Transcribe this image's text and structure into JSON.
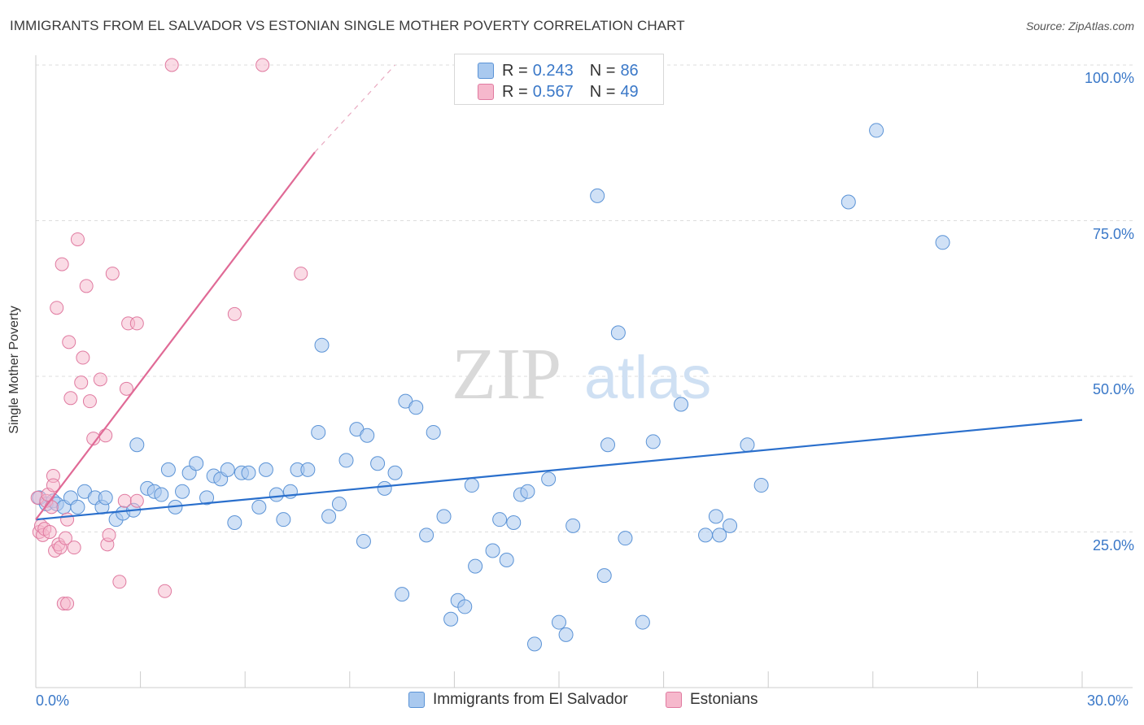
{
  "title": "IMMIGRANTS FROM EL SALVADOR VS ESTONIAN SINGLE MOTHER POVERTY CORRELATION CHART",
  "source": "Source: ZipAtlas.com",
  "watermark": {
    "zip": "ZIP",
    "atlas": "atlas"
  },
  "legend_top": [
    {
      "r_label": "R =",
      "r_value": "0.243",
      "n_label": "N =",
      "n_value": "86"
    },
    {
      "r_label": "R =",
      "r_value": "0.567",
      "n_label": "N =",
      "n_value": "49"
    }
  ],
  "legend_bottom": [
    {
      "label": "Immigrants from El Salvador"
    },
    {
      "label": "Estonians"
    }
  ],
  "colors": {
    "blue_fill": "#a9c9ef",
    "blue_stroke": "#5b93d6",
    "blue_line": "#2a6fcc",
    "pink_fill": "#f6b8cc",
    "pink_stroke": "#e07aa0",
    "pink_line": "#e06a96",
    "tick_text": "#3a78c8",
    "grid": "#dddddd"
  },
  "chart_data": {
    "type": "scatter",
    "xlabel": "",
    "ylabel": "Single Mother Poverty",
    "xlim": [
      0,
      30
    ],
    "ylim": [
      0,
      100
    ],
    "x_ticks_labels": [
      "0.0%",
      "30.0%"
    ],
    "y_ticks": [
      25,
      50,
      75,
      100
    ],
    "y_ticks_labels": [
      "25.0%",
      "50.0%",
      "75.0%",
      "100.0%"
    ],
    "grid": true,
    "legend_placement": "top-center",
    "series": [
      {
        "name": "Immigrants from El Salvador",
        "points": [
          [
            0.1,
            30.5
          ],
          [
            0.3,
            29.5
          ],
          [
            0.5,
            30
          ],
          [
            0.6,
            29.5
          ],
          [
            0.8,
            29
          ],
          [
            1,
            30.5
          ],
          [
            1.2,
            29
          ],
          [
            1.4,
            31.5
          ],
          [
            1.7,
            30.5
          ],
          [
            1.9,
            29
          ],
          [
            2,
            30.5
          ],
          [
            2.3,
            27
          ],
          [
            2.5,
            28
          ],
          [
            2.8,
            28.5
          ],
          [
            2.9,
            39
          ],
          [
            3.2,
            32
          ],
          [
            3.4,
            31.5
          ],
          [
            3.6,
            31
          ],
          [
            3.8,
            35
          ],
          [
            4,
            29
          ],
          [
            4.2,
            31.5
          ],
          [
            4.4,
            34.5
          ],
          [
            4.6,
            36
          ],
          [
            4.9,
            30.5
          ],
          [
            5.1,
            34
          ],
          [
            5.3,
            33.5
          ],
          [
            5.5,
            35
          ],
          [
            5.7,
            26.5
          ],
          [
            5.9,
            34.5
          ],
          [
            6.1,
            34.5
          ],
          [
            6.4,
            29
          ],
          [
            6.6,
            35
          ],
          [
            6.9,
            31
          ],
          [
            7.1,
            27
          ],
          [
            7.3,
            31.5
          ],
          [
            7.5,
            35
          ],
          [
            7.8,
            35
          ],
          [
            8.1,
            41
          ],
          [
            8.2,
            55
          ],
          [
            8.4,
            27.5
          ],
          [
            8.7,
            29.5
          ],
          [
            8.9,
            36.5
          ],
          [
            9.2,
            41.5
          ],
          [
            9.4,
            23.5
          ],
          [
            9.5,
            40.5
          ],
          [
            9.8,
            36
          ],
          [
            10,
            32
          ],
          [
            10.3,
            34.5
          ],
          [
            10.5,
            15
          ],
          [
            10.6,
            46
          ],
          [
            10.9,
            45
          ],
          [
            11.2,
            24.5
          ],
          [
            11.4,
            41
          ],
          [
            11.7,
            27.5
          ],
          [
            11.9,
            11
          ],
          [
            12.1,
            14
          ],
          [
            12.3,
            13
          ],
          [
            12.5,
            32.5
          ],
          [
            12.6,
            19.5
          ],
          [
            13.1,
            22
          ],
          [
            13.3,
            27
          ],
          [
            13.5,
            20.5
          ],
          [
            13.7,
            26.5
          ],
          [
            13.9,
            31
          ],
          [
            14.1,
            31.5
          ],
          [
            14.3,
            7
          ],
          [
            14.7,
            33.5
          ],
          [
            15,
            10.5
          ],
          [
            15.2,
            8.5
          ],
          [
            15.4,
            26
          ],
          [
            16.1,
            79
          ],
          [
            16.3,
            18
          ],
          [
            16.4,
            39
          ],
          [
            16.7,
            57
          ],
          [
            16.9,
            24
          ],
          [
            17.4,
            10.5
          ],
          [
            17.7,
            39.5
          ],
          [
            18.5,
            45.5
          ],
          [
            19.2,
            24.5
          ],
          [
            19.5,
            27.5
          ],
          [
            19.6,
            24.5
          ],
          [
            19.9,
            26
          ],
          [
            20.4,
            39
          ],
          [
            20.8,
            32.5
          ],
          [
            23.3,
            78
          ],
          [
            24.1,
            89.5
          ],
          [
            26,
            71.5
          ]
        ],
        "trend": {
          "x": [
            0,
            30
          ],
          "y": [
            27,
            43
          ]
        }
      },
      {
        "name": "Estonians",
        "points": [
          [
            0.05,
            30.5
          ],
          [
            0.1,
            25
          ],
          [
            0.15,
            26
          ],
          [
            0.2,
            24.5
          ],
          [
            0.25,
            25.5
          ],
          [
            0.3,
            30
          ],
          [
            0.35,
            31
          ],
          [
            0.4,
            25
          ],
          [
            0.45,
            29
          ],
          [
            0.5,
            34
          ],
          [
            0.5,
            32.5
          ],
          [
            0.55,
            22
          ],
          [
            0.6,
            61
          ],
          [
            0.65,
            23
          ],
          [
            0.7,
            22.5
          ],
          [
            0.75,
            68
          ],
          [
            0.8,
            13.5
          ],
          [
            0.85,
            24
          ],
          [
            0.9,
            13.5
          ],
          [
            0.9,
            27
          ],
          [
            0.95,
            55.5
          ],
          [
            1,
            46.5
          ],
          [
            1.1,
            22.5
          ],
          [
            1.2,
            72
          ],
          [
            1.3,
            49
          ],
          [
            1.35,
            53
          ],
          [
            1.45,
            64.5
          ],
          [
            1.55,
            46
          ],
          [
            1.65,
            40
          ],
          [
            1.85,
            49.5
          ],
          [
            2,
            40.5
          ],
          [
            2.05,
            23
          ],
          [
            2.1,
            24.5
          ],
          [
            2.2,
            66.5
          ],
          [
            2.4,
            17
          ],
          [
            2.55,
            30
          ],
          [
            2.6,
            48
          ],
          [
            2.65,
            58.5
          ],
          [
            2.9,
            58.5
          ],
          [
            2.9,
            30
          ],
          [
            3.7,
            15.5
          ],
          [
            3.9,
            100
          ],
          [
            5.7,
            60
          ],
          [
            6.5,
            100
          ],
          [
            7.6,
            66.5
          ]
        ],
        "trend": {
          "x": [
            0,
            8
          ],
          "y": [
            27,
            86
          ]
        },
        "trend_extension": {
          "x": [
            8,
            10.3
          ],
          "y": [
            86,
            100
          ]
        }
      }
    ]
  }
}
